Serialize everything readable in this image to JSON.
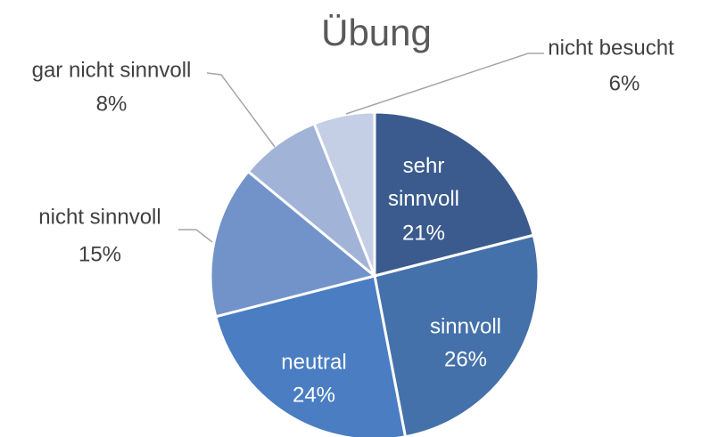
{
  "chart_data": {
    "type": "pie",
    "title": "Übung",
    "categories": [
      "sehr sinnvoll",
      "sinnvoll",
      "neutral",
      "nicht sinnvoll",
      "gar nicht sinnvoll",
      "nicht besucht"
    ],
    "values": [
      21,
      26,
      24,
      15,
      8,
      6
    ],
    "value_labels": [
      "21%",
      "26%",
      "24%",
      "15%",
      "8%",
      "6%"
    ],
    "colors": [
      "#3b5b8e",
      "#4471aa",
      "#4a7dc1",
      "#7293c9",
      "#a1b3d7",
      "#c4cfe6"
    ]
  }
}
